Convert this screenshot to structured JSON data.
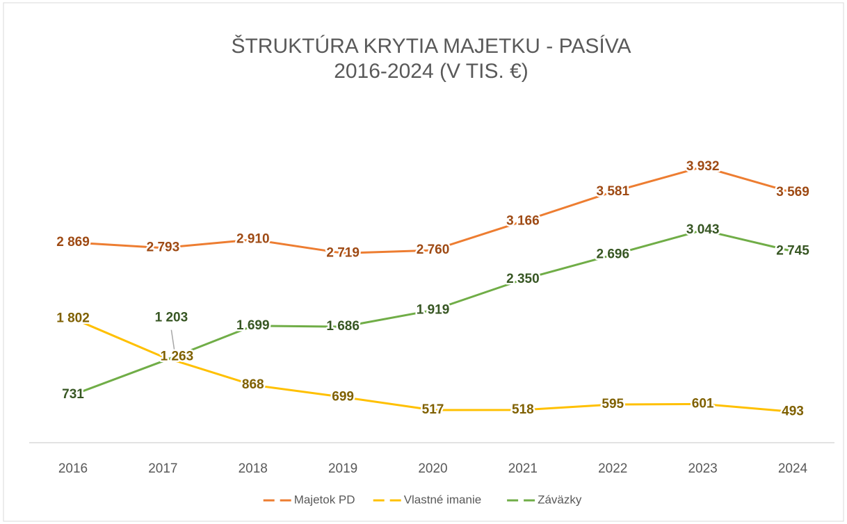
{
  "chart_data": {
    "type": "line",
    "title": "ŠTRUKTÚRA KRYTIA MAJETKU - PASÍVA",
    "subtitle": "2016-2024 (V TIS. €)",
    "categories": [
      "2016",
      "2017",
      "2018",
      "2019",
      "2020",
      "2021",
      "2022",
      "2023",
      "2024"
    ],
    "legend": "bottom",
    "series": [
      {
        "name": "Majetok PD",
        "color": "#ed7d31",
        "label_color": "#9e4a14",
        "values": [
          2869,
          2793,
          2910,
          2719,
          2760,
          3166,
          3581,
          3932,
          3569
        ],
        "value_labels": [
          "2 869",
          "2 793",
          "2 910",
          "2 719",
          "2 760",
          "3 166",
          "3 581",
          "3 932",
          "3 569"
        ]
      },
      {
        "name": "Vlastné imanie",
        "color": "#ffc000",
        "label_color": "#7f6000",
        "values": [
          1802,
          1263,
          868,
          699,
          517,
          518,
          595,
          601,
          493
        ],
        "value_labels": [
          "1 802",
          "1 263",
          "868",
          "699",
          "517",
          "518",
          "595",
          "601",
          "493"
        ]
      },
      {
        "name": "Záväzky",
        "color": "#70ad47",
        "label_color": "#375623",
        "values": [
          731,
          1203,
          1699,
          1686,
          1919,
          2350,
          2696,
          3043,
          2745
        ],
        "value_labels": [
          "731",
          "1 203",
          "1 699",
          "1 686",
          "1 919",
          "2 350",
          "2 696",
          "3 043",
          "2 745"
        ]
      }
    ]
  }
}
